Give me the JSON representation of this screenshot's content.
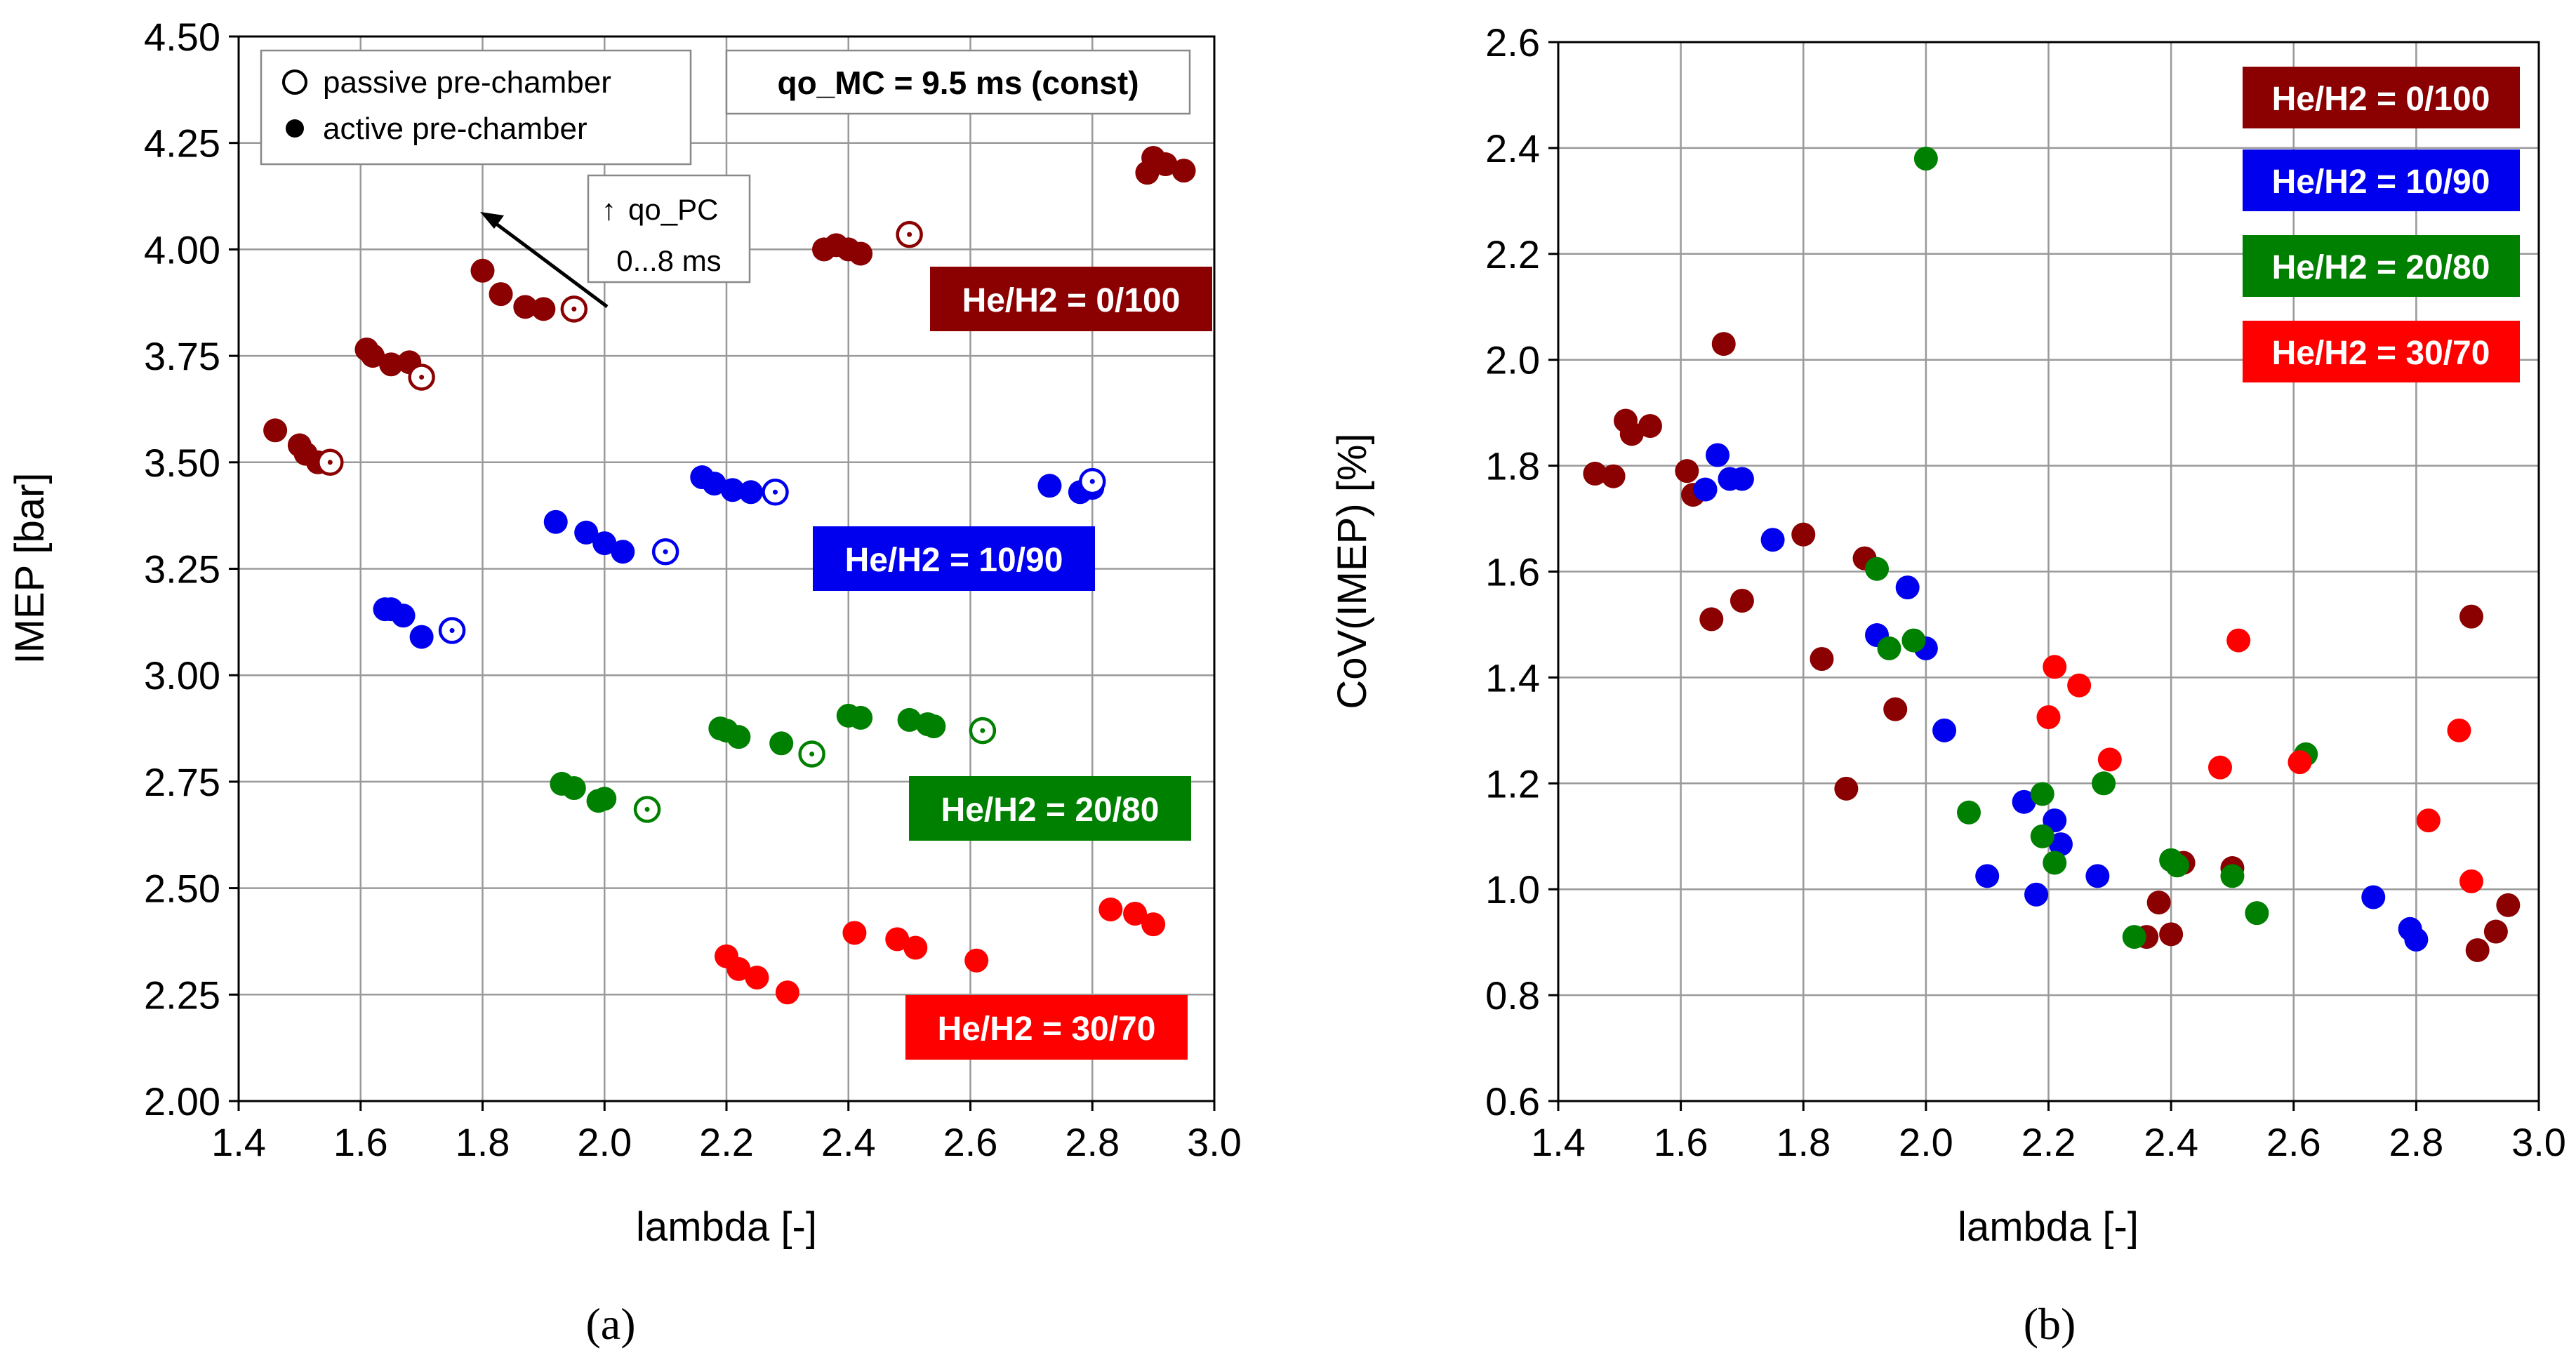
{
  "chart_data": [
    {
      "type": "scatter",
      "panel_label": "(a)",
      "title": "",
      "xlabel": "lambda [-]",
      "ylabel": "IMEP [bar]",
      "xlim": [
        1.4,
        3.0
      ],
      "ylim": [
        2.0,
        4.5
      ],
      "x_ticks": [
        1.4,
        1.6,
        1.8,
        2.0,
        2.2,
        2.4,
        2.6,
        2.8,
        3.0
      ],
      "y_ticks": [
        2.0,
        2.25,
        2.5,
        2.75,
        3.0,
        3.25,
        3.5,
        3.75,
        4.0,
        4.25,
        4.5
      ],
      "grid": true,
      "legend": {
        "position": "top-left",
        "passive_label": "passive pre-chamber",
        "active_label": "active pre-chamber"
      },
      "note": "qo_MC = 9.5 ms (const)",
      "arrow_annotation": {
        "line1": "qo_PC",
        "line2": "0...8 ms",
        "arrow_glyph": "↑"
      },
      "series": [
        {
          "name": "He/H2 = 0/100",
          "color": "#8b0000",
          "label": "He/H2 = 0/100",
          "active": [
            [
              1.46,
              3.575
            ],
            [
              1.5,
              3.54
            ],
            [
              1.51,
              3.52
            ],
            [
              1.53,
              3.5
            ],
            [
              1.61,
              3.765
            ],
            [
              1.62,
              3.75
            ],
            [
              1.65,
              3.73
            ],
            [
              1.68,
              3.735
            ],
            [
              1.8,
              3.95
            ],
            [
              1.83,
              3.895
            ],
            [
              1.87,
              3.865
            ],
            [
              1.9,
              3.86
            ],
            [
              2.36,
              4.0
            ],
            [
              2.38,
              4.01
            ],
            [
              2.4,
              4.0
            ],
            [
              2.42,
              3.99
            ],
            [
              2.89,
              4.18
            ],
            [
              2.9,
              4.215
            ],
            [
              2.92,
              4.2
            ],
            [
              2.95,
              4.185
            ]
          ],
          "passive": [
            [
              1.55,
              3.5
            ],
            [
              1.7,
              3.7
            ],
            [
              1.95,
              3.86
            ],
            [
              2.5,
              4.035
            ]
          ]
        },
        {
          "name": "He/H2 = 10/90",
          "color": "#0000ee",
          "label": "He/H2 = 10/90",
          "active": [
            [
              1.64,
              3.155
            ],
            [
              1.65,
              3.155
            ],
            [
              1.67,
              3.14
            ],
            [
              1.7,
              3.09
            ],
            [
              1.92,
              3.36
            ],
            [
              1.97,
              3.335
            ],
            [
              2.0,
              3.31
            ],
            [
              2.03,
              3.29
            ],
            [
              2.16,
              3.465
            ],
            [
              2.18,
              3.45
            ],
            [
              2.21,
              3.435
            ],
            [
              2.24,
              3.43
            ],
            [
              2.73,
              3.445
            ],
            [
              2.78,
              3.43
            ],
            [
              2.8,
              3.44
            ]
          ],
          "passive": [
            [
              1.75,
              3.105
            ],
            [
              2.1,
              3.29
            ],
            [
              2.28,
              3.43
            ],
            [
              2.8,
              3.455
            ]
          ]
        },
        {
          "name": "He/H2 = 20/80",
          "color": "#008000",
          "label": "He/H2 = 20/80",
          "active": [
            [
              1.93,
              2.745
            ],
            [
              1.95,
              2.735
            ],
            [
              1.99,
              2.705
            ],
            [
              2.0,
              2.71
            ],
            [
              2.19,
              2.875
            ],
            [
              2.2,
              2.87
            ],
            [
              2.22,
              2.855
            ],
            [
              2.29,
              2.84
            ],
            [
              2.4,
              2.905
            ],
            [
              2.42,
              2.9
            ],
            [
              2.5,
              2.895
            ],
            [
              2.53,
              2.885
            ],
            [
              2.54,
              2.88
            ]
          ],
          "passive": [
            [
              2.07,
              2.685
            ],
            [
              2.34,
              2.815
            ],
            [
              2.62,
              2.87
            ]
          ]
        },
        {
          "name": "He/H2 = 30/70",
          "color": "#ff0000",
          "label": "He/H2 = 30/70",
          "active": [
            [
              2.2,
              2.34
            ],
            [
              2.22,
              2.31
            ],
            [
              2.25,
              2.29
            ],
            [
              2.3,
              2.255
            ],
            [
              2.41,
              2.395
            ],
            [
              2.48,
              2.38
            ],
            [
              2.51,
              2.36
            ],
            [
              2.61,
              2.33
            ],
            [
              2.83,
              2.45
            ],
            [
              2.87,
              2.44
            ],
            [
              2.9,
              2.415
            ]
          ],
          "passive": []
        }
      ]
    },
    {
      "type": "scatter",
      "panel_label": "(b)",
      "title": "",
      "xlabel": "lambda [-]",
      "ylabel": "CoV(IMEP) [%]",
      "xlim": [
        1.4,
        3.0
      ],
      "ylim": [
        0.6,
        2.6
      ],
      "x_ticks": [
        1.4,
        1.6,
        1.8,
        2.0,
        2.2,
        2.4,
        2.6,
        2.8,
        3.0
      ],
      "y_ticks": [
        0.6,
        0.8,
        1.0,
        1.2,
        1.4,
        1.6,
        1.8,
        2.0,
        2.2,
        2.4,
        2.6
      ],
      "grid": true,
      "legend": {
        "position": "top-right"
      },
      "series": [
        {
          "name": "He/H2 = 0/100",
          "color": "#8b0000",
          "label": "He/H2 = 0/100",
          "points": [
            [
              1.46,
              1.785
            ],
            [
              1.49,
              1.78
            ],
            [
              1.51,
              1.885
            ],
            [
              1.52,
              1.86
            ],
            [
              1.55,
              1.875
            ],
            [
              1.61,
              1.79
            ],
            [
              1.62,
              1.745
            ],
            [
              1.65,
              1.51
            ],
            [
              1.67,
              2.03
            ],
            [
              1.7,
              1.545
            ],
            [
              1.8,
              1.67
            ],
            [
              1.83,
              1.435
            ],
            [
              1.87,
              1.19
            ],
            [
              1.9,
              1.625
            ],
            [
              1.95,
              1.34
            ],
            [
              2.36,
              0.91
            ],
            [
              2.38,
              0.975
            ],
            [
              2.4,
              0.915
            ],
            [
              2.42,
              1.05
            ],
            [
              2.5,
              1.04
            ],
            [
              2.89,
              1.515
            ],
            [
              2.9,
              0.885
            ],
            [
              2.93,
              0.92
            ],
            [
              2.95,
              0.97
            ]
          ]
        },
        {
          "name": "He/H2 = 10/90",
          "color": "#0000ee",
          "label": "He/H2 = 10/90",
          "points": [
            [
              1.64,
              1.755
            ],
            [
              1.66,
              1.82
            ],
            [
              1.68,
              1.775
            ],
            [
              1.7,
              1.775
            ],
            [
              1.75,
              1.66
            ],
            [
              1.92,
              1.48
            ],
            [
              1.97,
              1.57
            ],
            [
              2.0,
              1.455
            ],
            [
              2.03,
              1.3
            ],
            [
              2.1,
              1.025
            ],
            [
              2.16,
              1.165
            ],
            [
              2.18,
              0.99
            ],
            [
              2.21,
              1.13
            ],
            [
              2.22,
              1.085
            ],
            [
              2.28,
              1.025
            ],
            [
              2.73,
              0.985
            ],
            [
              2.79,
              0.925
            ],
            [
              2.8,
              0.905
            ]
          ]
        },
        {
          "name": "He/H2 = 20/80",
          "color": "#008000",
          "label": "He/H2 = 20/80",
          "points": [
            [
              1.92,
              1.605
            ],
            [
              1.94,
              1.455
            ],
            [
              1.98,
              1.47
            ],
            [
              2.0,
              2.38
            ],
            [
              2.07,
              1.145
            ],
            [
              2.19,
              1.18
            ],
            [
              2.19,
              1.1
            ],
            [
              2.21,
              1.05
            ],
            [
              2.29,
              1.2
            ],
            [
              2.34,
              0.91
            ],
            [
              2.4,
              1.055
            ],
            [
              2.41,
              1.045
            ],
            [
              2.5,
              1.025
            ],
            [
              2.54,
              0.955
            ],
            [
              2.62,
              1.255
            ]
          ]
        },
        {
          "name": "He/H2 = 30/70",
          "color": "#ff0000",
          "label": "He/H2 = 30/70",
          "points": [
            [
              2.2,
              1.325
            ],
            [
              2.21,
              1.42
            ],
            [
              2.25,
              1.385
            ],
            [
              2.3,
              1.245
            ],
            [
              2.48,
              1.23
            ],
            [
              2.51,
              1.47
            ],
            [
              2.61,
              1.24
            ],
            [
              2.82,
              1.13
            ],
            [
              2.87,
              1.3
            ],
            [
              2.89,
              1.015
            ]
          ]
        }
      ]
    }
  ]
}
